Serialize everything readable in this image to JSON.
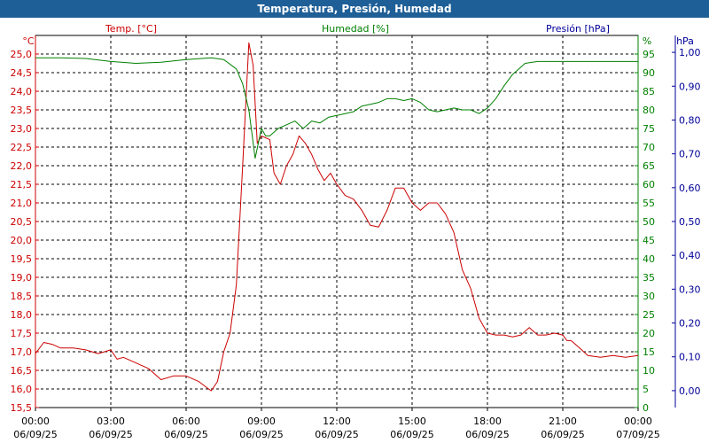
{
  "title": "Temperatura, Presión, Humedad",
  "colors": {
    "temp": "#cc0000",
    "hum": "#008000",
    "pres": "#000099",
    "titlebar": "#1f5f97"
  },
  "chart_data": {
    "type": "line",
    "title": "Temperatura, Presión, Humedad",
    "grid": true,
    "x_axis": {
      "range": [
        "2025-09-06 00:00",
        "2025-09-07 00:00"
      ],
      "tick_labels": [
        [
          "00:00",
          "06/09/25"
        ],
        [
          "03:00",
          "06/09/25"
        ],
        [
          "06:00",
          "06/09/25"
        ],
        [
          "09:00",
          "06/09/25"
        ],
        [
          "12:00",
          "06/09/25"
        ],
        [
          "15:00",
          "06/09/25"
        ],
        [
          "18:00",
          "06/09/25"
        ],
        [
          "21:00",
          "06/09/25"
        ],
        [
          "00:00",
          "07/09/25"
        ]
      ]
    },
    "y_left": {
      "series_label": "Temp. [°C]",
      "unit": "°C",
      "range": [
        15.5,
        25.5
      ],
      "ticks": [
        "15,5",
        "16,0",
        "16,5",
        "17,0",
        "17,5",
        "18,0",
        "18,5",
        "19,0",
        "19,5",
        "20,0",
        "20,5",
        "21,0",
        "21,5",
        "22,0",
        "22,5",
        "23,0",
        "23,5",
        "24,0",
        "24,5",
        "25,0"
      ]
    },
    "y_mid": {
      "series_label": "Humedad [%]",
      "unit": "%",
      "range": [
        0,
        100
      ],
      "ticks": [
        "0",
        "5",
        "10",
        "15",
        "20",
        "25",
        "30",
        "35",
        "40",
        "45",
        "50",
        "55",
        "60",
        "65",
        "70",
        "75",
        "80",
        "85",
        "90",
        "95"
      ]
    },
    "y_right": {
      "series_label": "Presión [hPa]",
      "unit": "hPa",
      "range": [
        -0.05,
        1.05
      ],
      "ticks": [
        "0,00",
        "0,10",
        "0,20",
        "0,30",
        "0,40",
        "0,50",
        "0,60",
        "0,70",
        "0,80",
        "0,90",
        "1,00"
      ]
    },
    "series": [
      {
        "name": "Temp. [°C]",
        "axis": "left",
        "x": [
          "00:00",
          "00:20",
          "00:40",
          "01:00",
          "01:30",
          "02:00",
          "02:30",
          "03:00",
          "03:15",
          "03:30",
          "04:00",
          "04:30",
          "05:00",
          "05:30",
          "06:00",
          "06:30",
          "07:00",
          "07:15",
          "07:30",
          "07:45",
          "08:00",
          "08:15",
          "08:30",
          "08:40",
          "08:50",
          "09:00",
          "09:10",
          "09:20",
          "09:30",
          "09:45",
          "10:00",
          "10:15",
          "10:30",
          "10:45",
          "11:00",
          "11:15",
          "11:30",
          "11:45",
          "12:00",
          "12:20",
          "12:40",
          "13:00",
          "13:20",
          "13:40",
          "14:00",
          "14:20",
          "14:40",
          "15:00",
          "15:20",
          "15:40",
          "16:00",
          "16:20",
          "16:40",
          "17:00",
          "17:20",
          "17:40",
          "18:00",
          "18:20",
          "18:40",
          "19:00",
          "19:20",
          "19:40",
          "20:00",
          "20:20",
          "20:40",
          "21:00",
          "21:10",
          "21:20",
          "21:40",
          "22:00",
          "22:30",
          "23:00",
          "23:30",
          "00:00"
        ],
        "y": [
          16.95,
          17.25,
          17.2,
          17.1,
          17.1,
          17.05,
          16.95,
          17.05,
          16.8,
          16.85,
          16.7,
          16.55,
          16.25,
          16.35,
          16.35,
          16.2,
          15.95,
          16.2,
          17.0,
          17.5,
          18.8,
          22.0,
          25.3,
          24.7,
          22.6,
          22.8,
          22.75,
          22.7,
          21.8,
          21.5,
          22.0,
          22.3,
          22.8,
          22.6,
          22.3,
          21.9,
          21.6,
          21.8,
          21.5,
          21.2,
          21.1,
          20.8,
          20.4,
          20.35,
          20.8,
          21.4,
          21.4,
          21.0,
          20.8,
          21.0,
          21.0,
          20.7,
          20.2,
          19.2,
          18.7,
          17.9,
          17.5,
          17.45,
          17.45,
          17.4,
          17.45,
          17.65,
          17.45,
          17.45,
          17.5,
          17.45,
          17.3,
          17.3,
          17.1,
          16.9,
          16.85,
          16.9,
          16.85,
          16.9
        ]
      },
      {
        "name": "Humedad [%]",
        "axis": "mid",
        "x": [
          "00:00",
          "01:00",
          "02:00",
          "03:00",
          "04:00",
          "05:00",
          "06:00",
          "07:00",
          "07:30",
          "08:00",
          "08:15",
          "08:30",
          "08:45",
          "09:00",
          "09:10",
          "09:20",
          "09:40",
          "10:00",
          "10:20",
          "10:40",
          "11:00",
          "11:20",
          "11:40",
          "12:00",
          "12:20",
          "12:40",
          "13:00",
          "13:20",
          "13:40",
          "14:00",
          "14:20",
          "14:40",
          "15:00",
          "15:20",
          "15:40",
          "16:00",
          "16:20",
          "16:40",
          "17:00",
          "17:20",
          "17:40",
          "18:00",
          "18:20",
          "18:40",
          "19:00",
          "19:30",
          "20:00",
          "21:00",
          "22:00",
          "23:00",
          "00:00"
        ],
        "y": [
          94,
          94,
          93.8,
          93,
          92.5,
          92.8,
          93.5,
          94,
          93.5,
          91,
          87,
          80,
          67,
          75,
          73,
          73,
          75,
          76,
          77,
          75,
          77,
          76.5,
          78,
          78.5,
          79,
          79.5,
          81,
          81.5,
          82,
          83,
          83,
          82.5,
          83,
          82,
          80,
          79.5,
          80,
          80.5,
          80,
          80,
          79,
          80.5,
          83,
          86.5,
          89.5,
          92.5,
          93,
          93,
          93,
          93,
          93
        ]
      }
    ]
  }
}
